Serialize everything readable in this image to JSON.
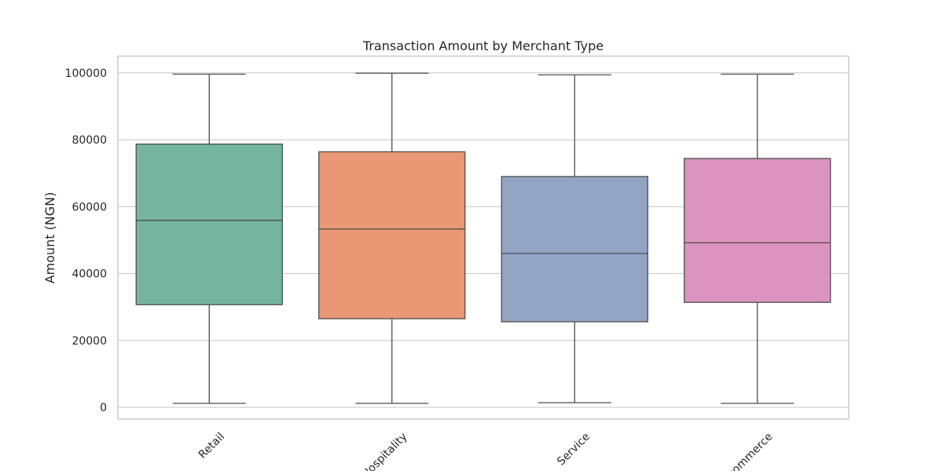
{
  "chart_data": {
    "type": "box",
    "title": "Transaction Amount by Merchant Type",
    "xlabel": "",
    "ylabel": "Amount (NGN)",
    "ylim": [
      -3500,
      105000
    ],
    "yticks": [
      0,
      20000,
      40000,
      60000,
      80000,
      100000
    ],
    "grid": true,
    "categories": [
      "Retail",
      "Hospitality",
      "Service",
      "E-commerce"
    ],
    "boxes": [
      {
        "category": "Retail",
        "min": 1200,
        "q1": 30700,
        "median": 55900,
        "q3": 78700,
        "max": 99600,
        "color": "#75b5a0"
      },
      {
        "category": "Hospitality",
        "min": 1200,
        "q1": 26500,
        "median": 53300,
        "q3": 76400,
        "max": 99900,
        "color": "#e99775"
      },
      {
        "category": "Service",
        "min": 1400,
        "q1": 25600,
        "median": 46000,
        "q3": 69000,
        "max": 99400,
        "color": "#94a4c5"
      },
      {
        "category": "E-commerce",
        "min": 1200,
        "q1": 31400,
        "median": 49200,
        "q3": 74400,
        "max": 99600,
        "color": "#db94bf"
      }
    ],
    "colors": {
      "grid": "#cccccc",
      "frame": "#cccccc",
      "box_line": "#4d4d4d",
      "text": "#262626"
    }
  }
}
